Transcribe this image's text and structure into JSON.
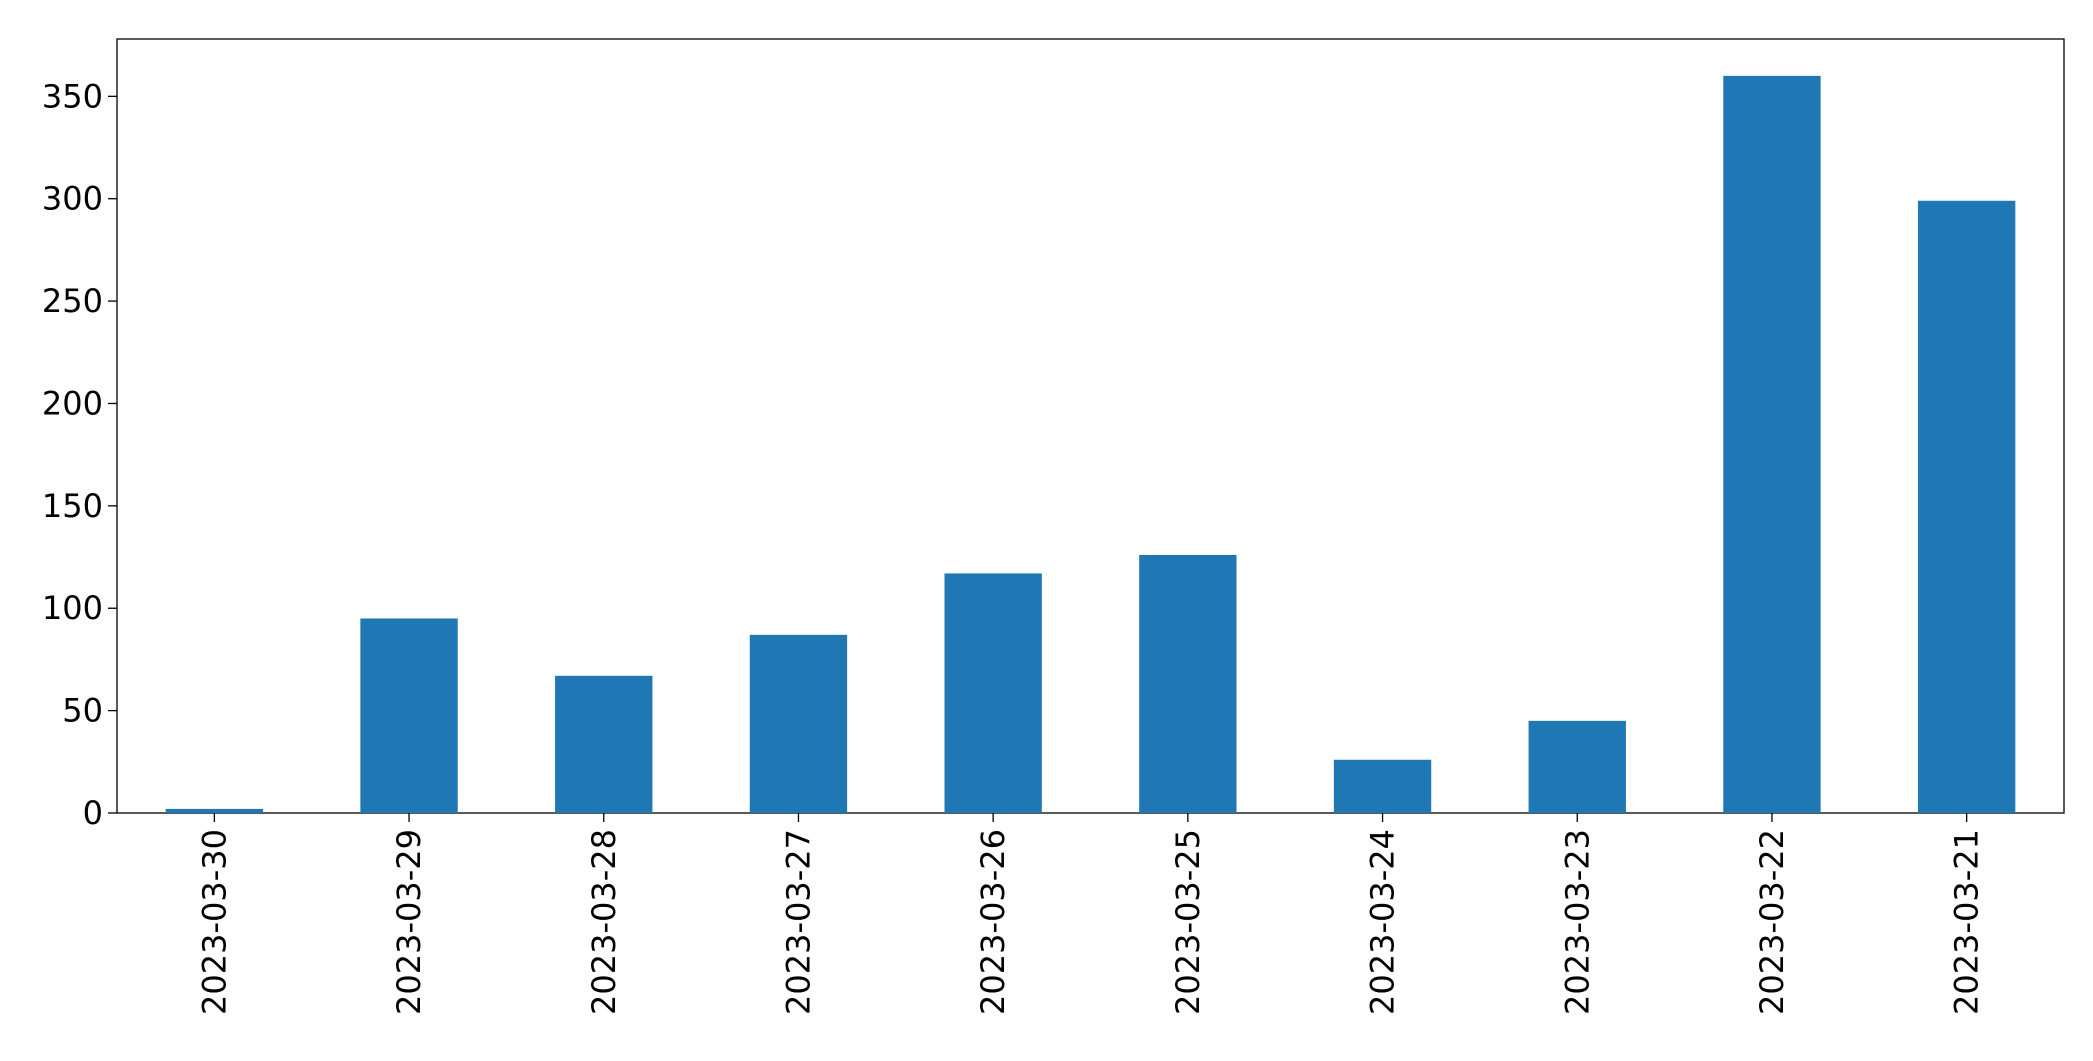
{
  "chart_data": {
    "type": "bar",
    "categories": [
      "2023-03-30",
      "2023-03-29",
      "2023-03-28",
      "2023-03-27",
      "2023-03-26",
      "2023-03-25",
      "2023-03-24",
      "2023-03-23",
      "2023-03-22",
      "2023-03-21"
    ],
    "values": [
      2,
      95,
      67,
      87,
      117,
      126,
      26,
      45,
      360,
      299
    ],
    "color": "#1f77b4",
    "ylim": [
      0,
      378
    ],
    "yticks": [
      0,
      50,
      100,
      150,
      200,
      250,
      300,
      350
    ],
    "grid": false
  }
}
